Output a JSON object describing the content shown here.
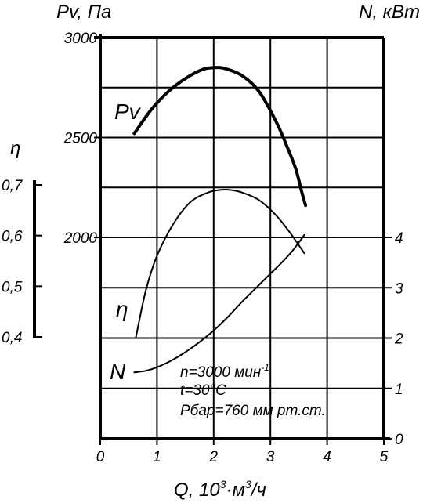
{
  "chart_data": {
    "type": "line",
    "grid": true,
    "titles": {
      "pv": "Pv, Па",
      "n": "N, кВт",
      "eta": "η",
      "x": "Q, 10",
      "x_exp": "3",
      "x_rest": "·м",
      "x_exp2": "3",
      "x_end": "/ч"
    },
    "x_axis": {
      "range": [
        0,
        5
      ],
      "ticks": [
        "0",
        "1",
        "2",
        "3",
        "4",
        "5"
      ]
    },
    "pv_axis": {
      "range": [
        2000,
        3000
      ],
      "ticks": [
        "2000",
        "2500",
        "3000"
      ]
    },
    "n_axis": {
      "range": [
        0,
        4
      ],
      "ticks": [
        "0",
        "1",
        "2",
        "3",
        "4"
      ]
    },
    "eta_axis": {
      "range": [
        0.4,
        0.7
      ],
      "ticks": [
        "0,4",
        "0,5",
        "0,6",
        "0,7"
      ]
    },
    "notes": {
      "n_pre": "n=3000 мин",
      "n_exp": "-1",
      "t": "t=30°C",
      "p": "Pбар=760 мм рт.ст."
    },
    "series": [
      {
        "name": "Pv",
        "axis": "pv",
        "x": [
          0.6,
          0.9,
          1.2,
          1.5,
          1.8,
          2.0,
          2.2,
          2.5,
          2.8,
          3.1,
          3.3,
          3.45,
          3.55,
          3.62
        ],
        "y": [
          2520,
          2640,
          2730,
          2795,
          2840,
          2850,
          2845,
          2810,
          2730,
          2580,
          2450,
          2340,
          2230,
          2160
        ]
      },
      {
        "name": "η",
        "axis": "eta",
        "x": [
          0.63,
          0.8,
          1.0,
          1.3,
          1.6,
          1.9,
          2.1,
          2.3,
          2.5,
          2.8,
          3.1,
          3.35,
          3.6
        ],
        "y": [
          0.4,
          0.49,
          0.56,
          0.625,
          0.667,
          0.685,
          0.69,
          0.69,
          0.685,
          0.67,
          0.64,
          0.605,
          0.565
        ]
      },
      {
        "name": "N",
        "axis": "n",
        "x": [
          0.6,
          0.8,
          1.0,
          1.25,
          1.5,
          1.75,
          2.0,
          2.25,
          2.5,
          2.75,
          3.0,
          3.2,
          3.4,
          3.6
        ],
        "y": [
          1.32,
          1.35,
          1.42,
          1.55,
          1.72,
          1.92,
          2.15,
          2.42,
          2.72,
          3.0,
          3.28,
          3.5,
          3.75,
          4.05
        ]
      }
    ]
  }
}
